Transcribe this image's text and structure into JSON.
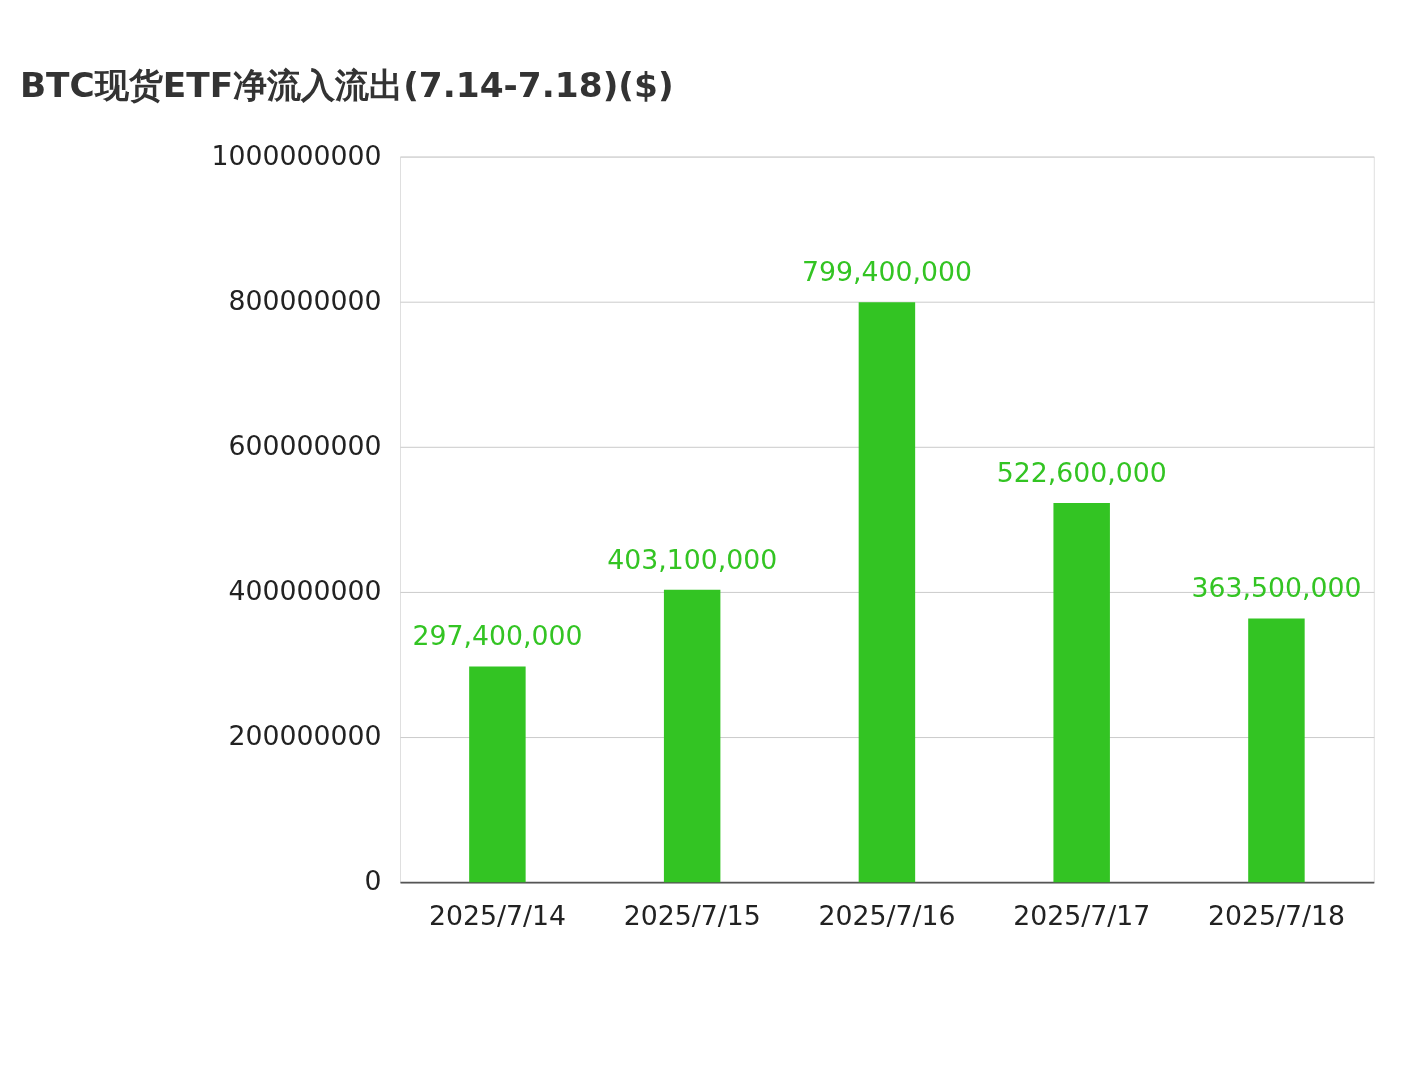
{
  "chart_data": {
    "type": "bar",
    "title": "BTC现货ETF净流入流出(7.14-7.18)($)",
    "categories": [
      "2025/7/14",
      "2025/7/15",
      "2025/7/16",
      "2025/7/17",
      "2025/7/18"
    ],
    "values": [
      297400000,
      403100000,
      799400000,
      522600000,
      363500000
    ],
    "color": "#33c423",
    "ylim": [
      0,
      1000000000
    ],
    "yticks": [
      0,
      200000000,
      400000000,
      600000000,
      800000000,
      1000000000
    ],
    "value_labels": [
      "297,400,000",
      "403,100,000",
      "799,400,000",
      "522,600,000",
      "363,500,000"
    ],
    "grid": "y"
  }
}
